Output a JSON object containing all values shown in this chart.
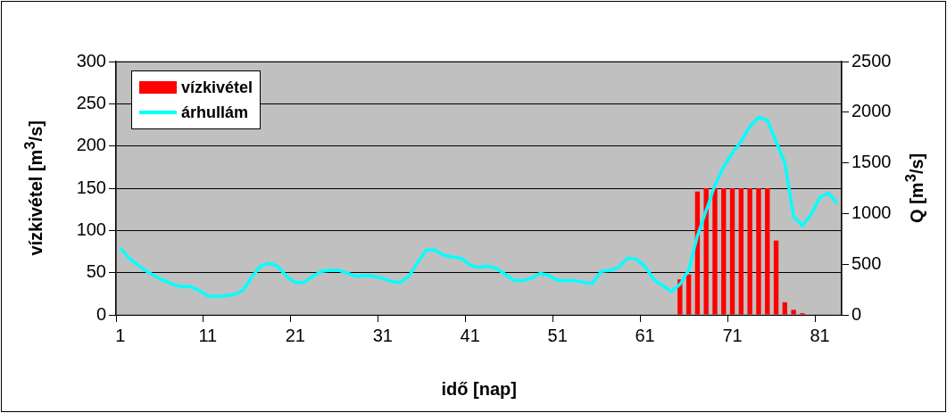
{
  "chart_data": {
    "type": "bar",
    "xlabel": "idő [nap]",
    "ylabel": "vízkivétel [m$^{3}$/s]",
    "y2label": "Q [m$^{3}$/s]",
    "categories": [
      "1",
      null,
      null,
      null,
      null,
      null,
      null,
      null,
      null,
      null,
      "11",
      null,
      null,
      null,
      null,
      null,
      null,
      null,
      null,
      null,
      "21",
      null,
      null,
      null,
      null,
      null,
      null,
      null,
      null,
      null,
      "31",
      null,
      null,
      null,
      null,
      null,
      null,
      null,
      null,
      null,
      "41",
      null,
      null,
      null,
      null,
      null,
      null,
      null,
      null,
      null,
      "51",
      null,
      null,
      null,
      null,
      null,
      null,
      null,
      null,
      null,
      "61",
      null,
      null,
      null,
      null,
      null,
      null,
      null,
      null,
      null,
      "71",
      null,
      null,
      null,
      null,
      null,
      null,
      null,
      null,
      null,
      "81",
      null,
      null
    ],
    "series": [
      {
        "name": "vízkivétel",
        "color": "#ff0000",
        "values": [
          null,
          null,
          null,
          null,
          null,
          null,
          null,
          null,
          null,
          null,
          null,
          null,
          null,
          null,
          null,
          null,
          null,
          null,
          null,
          null,
          null,
          null,
          null,
          null,
          null,
          null,
          null,
          null,
          null,
          null,
          null,
          null,
          null,
          null,
          null,
          null,
          null,
          null,
          null,
          null,
          null,
          null,
          null,
          null,
          null,
          null,
          null,
          null,
          null,
          null,
          null,
          null,
          null,
          null,
          null,
          null,
          null,
          null,
          null,
          null,
          null,
          null,
          null,
          null,
          42,
          48,
          146,
          150,
          150,
          150,
          150,
          150,
          150,
          150,
          150,
          88,
          15,
          6,
          2,
          null,
          null,
          null,
          null
        ]
      },
      {
        "name": "árhullám",
        "type": "line",
        "axis": "y2",
        "color": "#00ffff",
        "values": [
          660,
          560,
          490,
          430,
          380,
          340,
          300,
          280,
          280,
          240,
          190,
          180,
          190,
          200,
          240,
          370,
          480,
          510,
          480,
          380,
          320,
          320,
          380,
          430,
          440,
          440,
          410,
          380,
          390,
          380,
          360,
          330,
          320,
          380,
          520,
          640,
          640,
          590,
          570,
          560,
          490,
          470,
          480,
          460,
          400,
          340,
          340,
          360,
          410,
          390,
          340,
          340,
          340,
          320,
          310,
          430,
          440,
          470,
          560,
          550,
          480,
          350,
          290,
          230,
          300,
          440,
          780,
          1030,
          1280,
          1460,
          1600,
          1710,
          1860,
          1950,
          1920,
          1710,
          1500,
          970,
          880,
          990,
          1160,
          1200,
          1100
        ]
      }
    ],
    "ylim": [
      0,
      300
    ],
    "yticks": [
      0,
      50,
      100,
      150,
      200,
      250,
      300
    ],
    "y2lim": [
      0,
      2500
    ],
    "y2ticks": [
      0,
      500,
      1000,
      1500,
      2000,
      2500
    ],
    "grid": "y",
    "legend": "top left"
  }
}
